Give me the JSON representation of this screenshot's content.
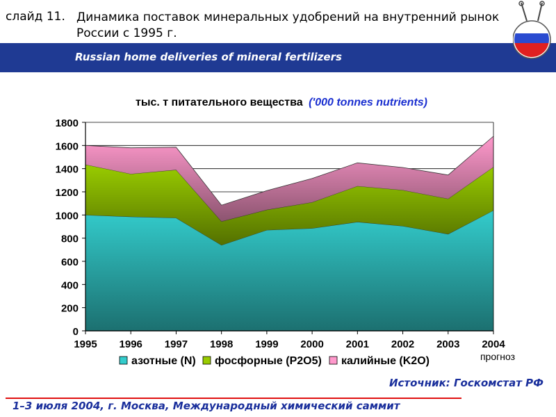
{
  "header": {
    "slide_label": "слайд 11.",
    "title": "Динамика поставок минеральных удобрений на внутренний рынок России с 1995 г.",
    "subtitle_en": "Russian home deliveries of mineral fertilizers"
  },
  "colors": {
    "band": "#1f3a93",
    "nitrogen": "#33cccc",
    "phosphate": "#99cc00",
    "potash": "#ff99cc",
    "text_blue": "#1a2f9c",
    "rule_red": "#e01010"
  },
  "chart_data": {
    "type": "area",
    "stacked": true,
    "title_ru": "тыс. т питательного вещества",
    "title_en": "('000 tonnes nutrients)",
    "categories": [
      "1995",
      "1996",
      "1997",
      "1998",
      "1999",
      "2000",
      "2001",
      "2002",
      "2003",
      "2004"
    ],
    "category_sublabel": {
      "index": 9,
      "text": "прогноз"
    },
    "ylim": [
      0,
      1800
    ],
    "yticks": [
      0,
      200,
      400,
      600,
      800,
      1000,
      1200,
      1400,
      1600,
      1800
    ],
    "grid": "horizontal",
    "legend_position": "bottom",
    "series": [
      {
        "name": "азотные (N)",
        "color": "#33cccc",
        "values": [
          1000,
          985,
          975,
          740,
          870,
          885,
          940,
          905,
          835,
          1040
        ]
      },
      {
        "name": "фосфорные (P2O5)",
        "color": "#99cc00",
        "values": [
          435,
          370,
          415,
          205,
          175,
          225,
          310,
          310,
          305,
          375
        ]
      },
      {
        "name": "калийные (K2O)",
        "color": "#ff99cc",
        "values": [
          165,
          225,
          195,
          140,
          165,
          205,
          200,
          195,
          205,
          265
        ]
      }
    ]
  },
  "source": "Источник: Госкомстат РФ",
  "footer": "1–3 июля 2004, г. Москва, Международный химический саммит"
}
